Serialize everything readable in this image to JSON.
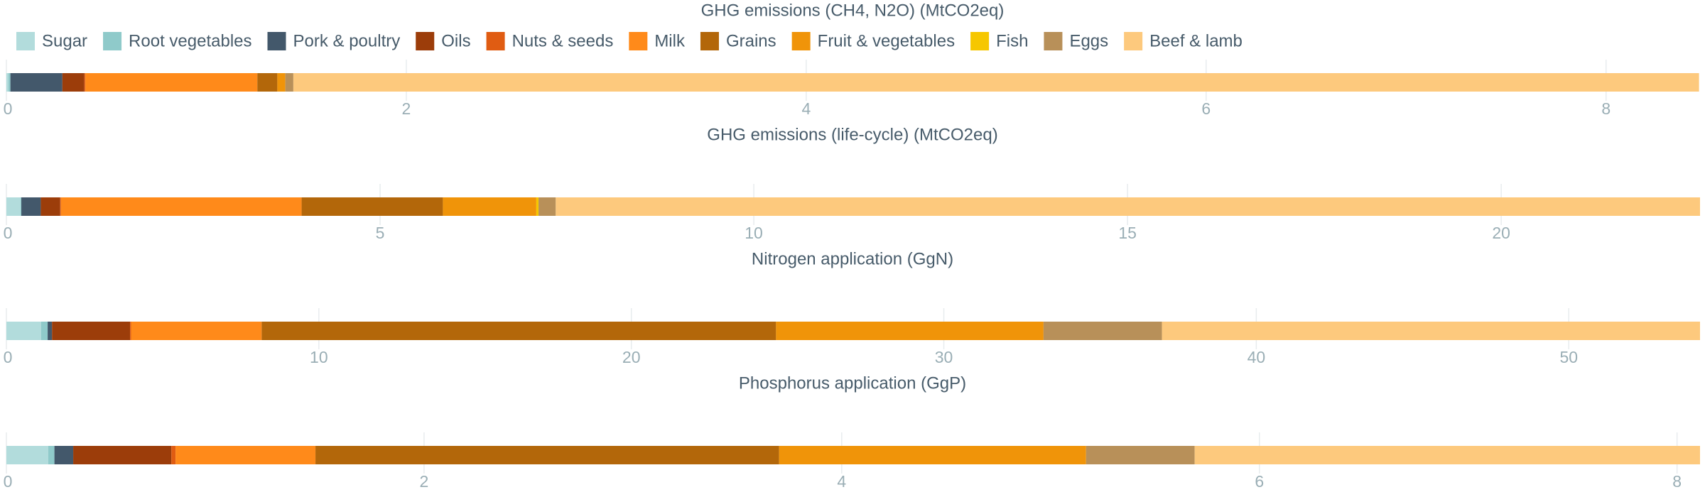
{
  "chart_data": [
    {
      "type": "bar",
      "title": "GHG emissions (CH4, N2O) (MtCO2eq)",
      "xlim": [
        0,
        8.47
      ],
      "xticks": [
        0,
        2,
        4,
        6,
        8
      ],
      "grid": true,
      "series": [
        {
          "name": "Sugar",
          "color": "#b2dcdc",
          "values": [
            0.01
          ]
        },
        {
          "name": "Root vegetables",
          "color": "#8fcaca",
          "values": [
            0.01
          ]
        },
        {
          "name": "Pork & poultry",
          "color": "#43586b",
          "values": [
            0.26
          ]
        },
        {
          "name": "Oils",
          "color": "#9c3d0a",
          "values": [
            0.11
          ]
        },
        {
          "name": "Nuts & seeds",
          "color": "#e05c12",
          "values": [
            0.005
          ]
        },
        {
          "name": "Milk",
          "color": "#ff8a1a",
          "values": [
            0.86
          ]
        },
        {
          "name": "Grains",
          "color": "#b3670a",
          "values": [
            0.1
          ]
        },
        {
          "name": "Fruit & vegetables",
          "color": "#f09409",
          "values": [
            0.04
          ]
        },
        {
          "name": "Fish",
          "color": "#f6c700",
          "values": [
            0
          ]
        },
        {
          "name": "Eggs",
          "color": "#b89059",
          "values": [
            0.04
          ]
        },
        {
          "name": "Beef & lamb",
          "color": "#fdc97d",
          "values": [
            7.03
          ]
        }
      ]
    },
    {
      "type": "bar",
      "title": "GHG emissions (life-cycle) (MtCO2eq)",
      "xlim": [
        0,
        22.66
      ],
      "xticks": [
        0,
        5,
        10,
        15,
        20
      ],
      "grid": true,
      "series": [
        {
          "values": [
            0.19
          ]
        },
        {
          "values": [
            0.01
          ]
        },
        {
          "values": [
            0.26
          ]
        },
        {
          "values": [
            0.26
          ]
        },
        {
          "values": [
            0.01
          ]
        },
        {
          "values": [
            3.22
          ]
        },
        {
          "values": [
            1.89
          ]
        },
        {
          "values": [
            1.25
          ]
        },
        {
          "values": [
            0.03
          ]
        },
        {
          "values": [
            0.23
          ]
        },
        {
          "values": [
            15.31
          ]
        }
      ]
    },
    {
      "type": "bar",
      "title": "Nitrogen application (GgN)",
      "xlim": [
        0,
        54.2
      ],
      "xticks": [
        0,
        10,
        20,
        30,
        40,
        50
      ],
      "grid": true,
      "series": [
        {
          "values": [
            1.11
          ]
        },
        {
          "values": [
            0.21
          ]
        },
        {
          "values": [
            0.14
          ]
        },
        {
          "values": [
            2.5
          ]
        },
        {
          "values": [
            0.03
          ]
        },
        {
          "values": [
            4.18
          ]
        },
        {
          "values": [
            16.46
          ]
        },
        {
          "values": [
            8.56
          ]
        },
        {
          "values": [
            0
          ]
        },
        {
          "values": [
            3.79
          ]
        },
        {
          "values": [
            17.22
          ]
        }
      ]
    },
    {
      "type": "bar",
      "title": "Phosphorus application (GgP)",
      "xlim": [
        0,
        8.11
      ],
      "xticks": [
        0,
        2,
        4,
        6,
        8
      ],
      "grid": true,
      "series": [
        {
          "values": [
            0.2
          ]
        },
        {
          "values": [
            0.03
          ]
        },
        {
          "values": [
            0.09
          ]
        },
        {
          "values": [
            0.47
          ]
        },
        {
          "values": [
            0.02
          ]
        },
        {
          "values": [
            0.67
          ]
        },
        {
          "values": [
            2.22
          ]
        },
        {
          "values": [
            1.47
          ]
        },
        {
          "values": [
            0
          ]
        },
        {
          "values": [
            0.52
          ]
        },
        {
          "values": [
            2.42
          ]
        }
      ]
    }
  ]
}
